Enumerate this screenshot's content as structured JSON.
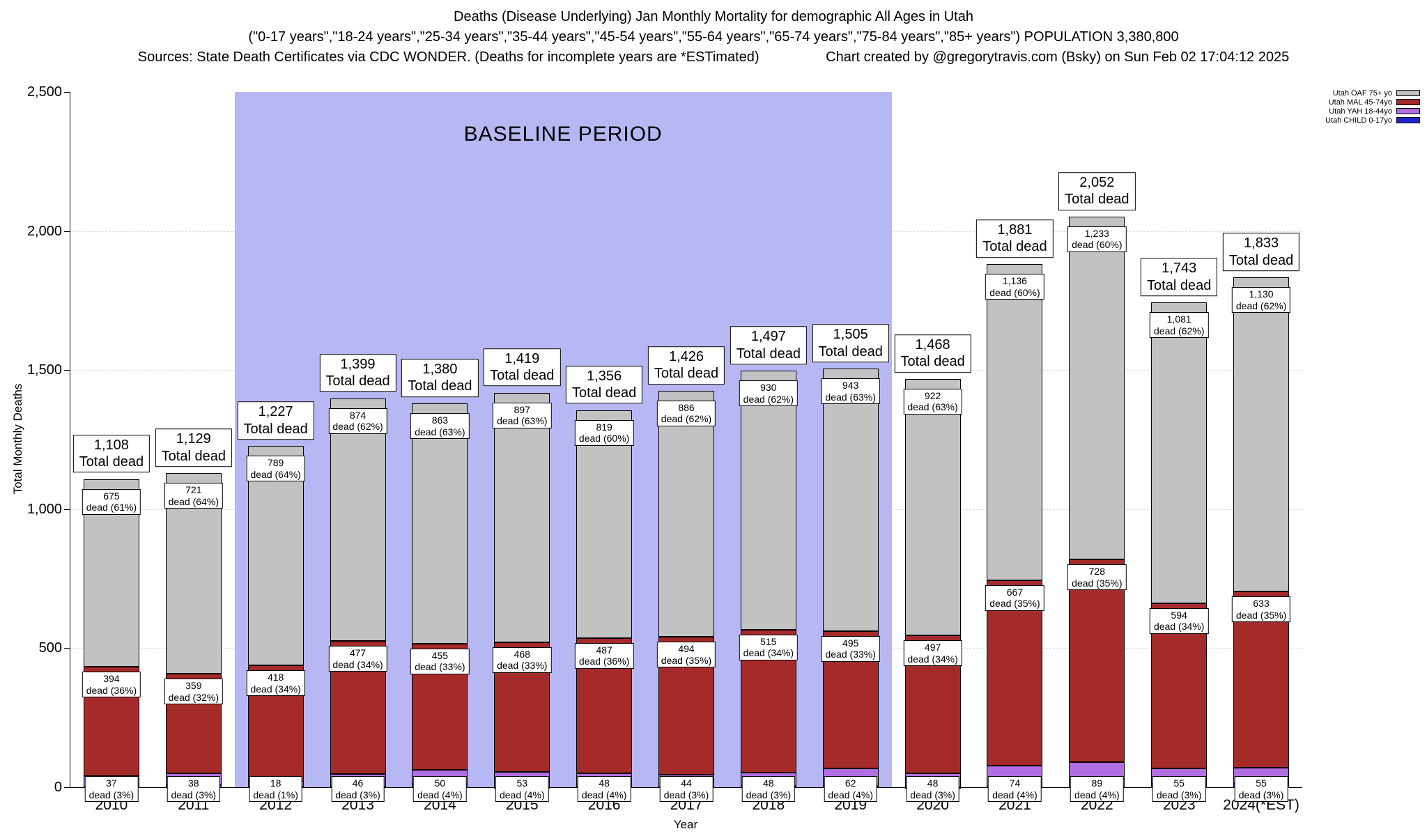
{
  "header": {
    "line1": "Deaths (Disease Underlying) Jan Monthly Mortality for demographic All Ages in Utah",
    "line2": "(\"0-17 years\",\"18-24 years\",\"25-34 years\",\"35-44 years\",\"45-54 years\",\"55-64 years\",\"65-74 years\",\"75-84 years\",\"85+ years\") POPULATION 3,380,800",
    "sources": "Sources: State Death Certificates via CDC WONDER. (Deaths for incomplete years are *ESTimated)",
    "credit": "Chart created by @gregorytravis.com (Bsky) on Sun Feb 02 17:04:12 2025"
  },
  "chart_data": {
    "type": "bar",
    "stacked": true,
    "ylabel": "Total Monthly Deaths",
    "xlabel": "Year",
    "ylim": [
      0,
      2500
    ],
    "yticks": [
      {
        "value": 0,
        "label": "0"
      },
      {
        "value": 500,
        "label": "500"
      },
      {
        "value": 1000,
        "label": "1,000"
      },
      {
        "value": 1500,
        "label": "1,500"
      },
      {
        "value": 2000,
        "label": "2,000"
      },
      {
        "value": 2500,
        "label": "2,500"
      }
    ],
    "baseline": {
      "label": "BASELINE PERIOD",
      "start_year": "2012",
      "end_year": "2019",
      "color": "#b7b7f3"
    },
    "legend": [
      {
        "key": "oaf",
        "label": "Utah OAF 75+ yo",
        "color": "#c2c2c2"
      },
      {
        "key": "mal",
        "label": "Utah MAL 45-74yo",
        "color": "#a52a2a"
      },
      {
        "key": "yah",
        "label": "Utah YAH 18-44yo",
        "color": "#b06ee0"
      },
      {
        "key": "child",
        "label": "Utah CHILD 0-17yo",
        "color": "#2222cc"
      }
    ],
    "bars": [
      {
        "year": "2010",
        "total": {
          "value": 1108,
          "label": "1,108",
          "sub": "Total dead"
        },
        "oaf": {
          "value": 675,
          "label": "675",
          "sub": "dead (61%)"
        },
        "mal": {
          "value": 394,
          "label": "394",
          "sub": "dead (36%)"
        },
        "yah": {
          "value": 37,
          "label": "37",
          "sub": "dead (3%)"
        }
      },
      {
        "year": "2011",
        "total": {
          "value": 1129,
          "label": "1,129",
          "sub": "Total dead"
        },
        "oaf": {
          "value": 721,
          "label": "721",
          "sub": "dead (64%)"
        },
        "mal": {
          "value": 359,
          "label": "359",
          "sub": "dead (32%)"
        },
        "yah": {
          "value": 38,
          "label": "38",
          "sub": "dead (3%)"
        }
      },
      {
        "year": "2012",
        "total": {
          "value": 1227,
          "label": "1,227",
          "sub": "Total dead"
        },
        "oaf": {
          "value": 789,
          "label": "789",
          "sub": "dead (64%)"
        },
        "mal": {
          "value": 418,
          "label": "418",
          "sub": "dead (34%)"
        },
        "yah": {
          "value": 18,
          "label": "18",
          "sub": "dead (1%)"
        }
      },
      {
        "year": "2013",
        "total": {
          "value": 1399,
          "label": "1,399",
          "sub": "Total dead"
        },
        "oaf": {
          "value": 874,
          "label": "874",
          "sub": "dead (62%)"
        },
        "mal": {
          "value": 477,
          "label": "477",
          "sub": "dead (34%)"
        },
        "yah": {
          "value": 46,
          "label": "46",
          "sub": "dead (3%)"
        }
      },
      {
        "year": "2014",
        "total": {
          "value": 1380,
          "label": "1,380",
          "sub": "Total dead"
        },
        "oaf": {
          "value": 863,
          "label": "863",
          "sub": "dead (63%)"
        },
        "mal": {
          "value": 455,
          "label": "455",
          "sub": "dead (33%)"
        },
        "yah": {
          "value": 50,
          "label": "50",
          "sub": "dead (4%)"
        }
      },
      {
        "year": "2015",
        "total": {
          "value": 1419,
          "label": "1,419",
          "sub": "Total dead"
        },
        "oaf": {
          "value": 897,
          "label": "897",
          "sub": "dead (63%)"
        },
        "mal": {
          "value": 468,
          "label": "468",
          "sub": "dead (33%)"
        },
        "yah": {
          "value": 53,
          "label": "53",
          "sub": "dead (4%)"
        }
      },
      {
        "year": "2016",
        "total": {
          "value": 1356,
          "label": "1,356",
          "sub": "Total dead"
        },
        "oaf": {
          "value": 819,
          "label": "819",
          "sub": "dead (60%)"
        },
        "mal": {
          "value": 487,
          "label": "487",
          "sub": "dead (36%)"
        },
        "yah": {
          "value": 48,
          "label": "48",
          "sub": "dead (4%)"
        }
      },
      {
        "year": "2017",
        "total": {
          "value": 1426,
          "label": "1,426",
          "sub": "Total dead"
        },
        "oaf": {
          "value": 886,
          "label": "886",
          "sub": "dead (62%)"
        },
        "mal": {
          "value": 494,
          "label": "494",
          "sub": "dead (35%)"
        },
        "yah": {
          "value": 44,
          "label": "44",
          "sub": "dead (3%)"
        }
      },
      {
        "year": "2018",
        "total": {
          "value": 1497,
          "label": "1,497",
          "sub": "Total dead"
        },
        "oaf": {
          "value": 930,
          "label": "930",
          "sub": "dead (62%)"
        },
        "mal": {
          "value": 515,
          "label": "515",
          "sub": "dead (34%)"
        },
        "yah": {
          "value": 48,
          "label": "48",
          "sub": "dead (3%)"
        }
      },
      {
        "year": "2019",
        "total": {
          "value": 1505,
          "label": "1,505",
          "sub": "Total dead"
        },
        "oaf": {
          "value": 943,
          "label": "943",
          "sub": "dead (63%)"
        },
        "mal": {
          "value": 495,
          "label": "495",
          "sub": "dead (33%)"
        },
        "yah": {
          "value": 62,
          "label": "62",
          "sub": "dead (4%)"
        }
      },
      {
        "year": "2020",
        "total": {
          "value": 1468,
          "label": "1,468",
          "sub": "Total dead"
        },
        "oaf": {
          "value": 922,
          "label": "922",
          "sub": "dead (63%)"
        },
        "mal": {
          "value": 497,
          "label": "497",
          "sub": "dead (34%)"
        },
        "yah": {
          "value": 48,
          "label": "48",
          "sub": "dead (3%)"
        }
      },
      {
        "year": "2021",
        "total": {
          "value": 1881,
          "label": "1,881",
          "sub": "Total dead"
        },
        "oaf": {
          "value": 1136,
          "label": "1,136",
          "sub": "dead (60%)"
        },
        "mal": {
          "value": 667,
          "label": "667",
          "sub": "dead (35%)"
        },
        "yah": {
          "value": 74,
          "label": "74",
          "sub": "dead (4%)"
        }
      },
      {
        "year": "2022",
        "total": {
          "value": 2052,
          "label": "2,052",
          "sub": "Total dead"
        },
        "oaf": {
          "value": 1233,
          "label": "1,233",
          "sub": "dead (60%)"
        },
        "mal": {
          "value": 728,
          "label": "728",
          "sub": "dead (35%)"
        },
        "yah": {
          "value": 89,
          "label": "89",
          "sub": "dead (4%)"
        }
      },
      {
        "year": "2023",
        "total": {
          "value": 1743,
          "label": "1,743",
          "sub": "Total dead"
        },
        "oaf": {
          "value": 1081,
          "label": "1,081",
          "sub": "dead (62%)"
        },
        "mal": {
          "value": 594,
          "label": "594",
          "sub": "dead (34%)"
        },
        "yah": {
          "value": 55,
          "label": "55",
          "sub": "dead (3%)"
        }
      },
      {
        "year": "2024(*EST)",
        "total": {
          "value": 1833,
          "label": "1,833",
          "sub": "Total dead"
        },
        "oaf": {
          "value": 1130,
          "label": "1,130",
          "sub": "dead (62%)"
        },
        "mal": {
          "value": 633,
          "label": "633",
          "sub": "dead (35%)"
        },
        "yah": {
          "value": 55,
          "label": "55",
          "sub": "dead (3%)"
        }
      }
    ]
  }
}
